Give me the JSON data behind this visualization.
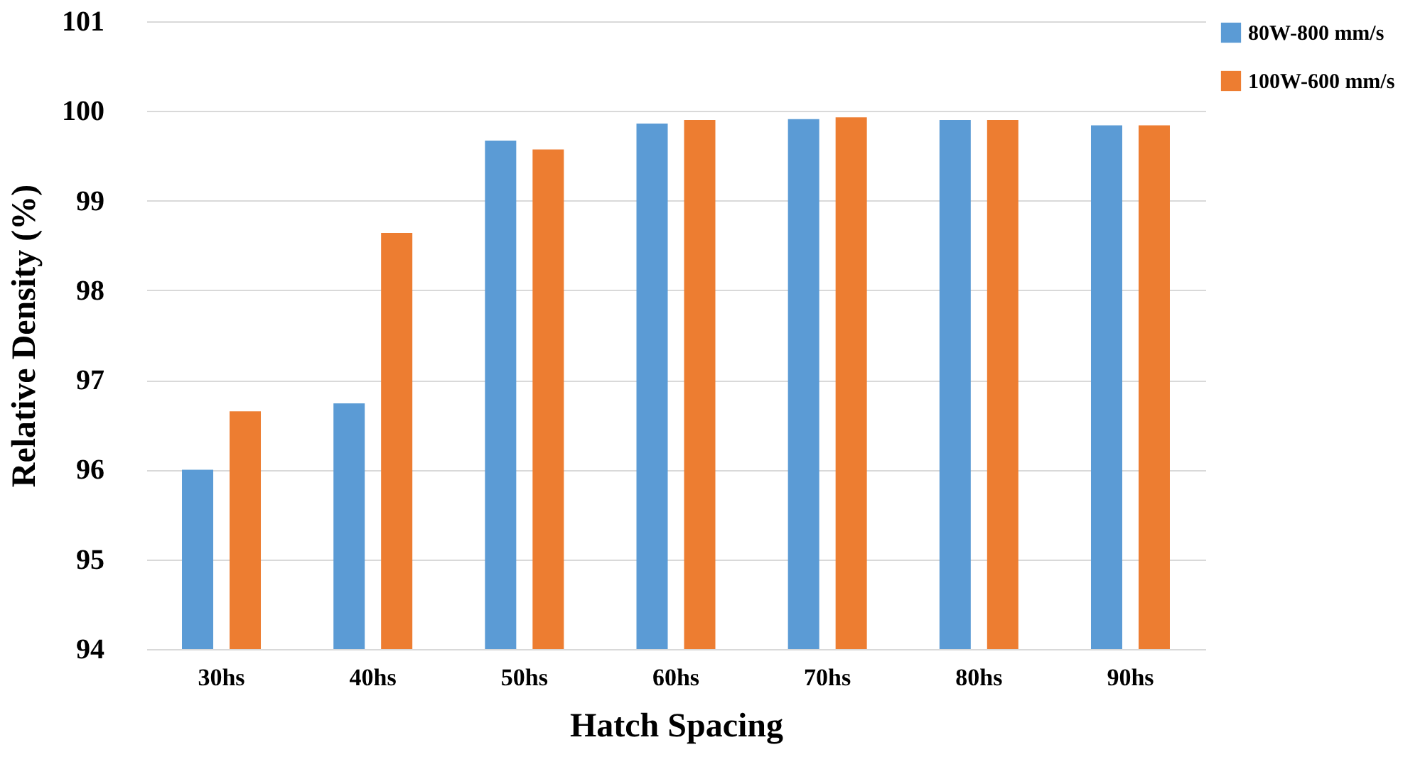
{
  "chart_data": {
    "type": "bar",
    "xlabel": "Hatch Spacing",
    "ylabel": "Relative Density (%)",
    "categories": [
      "30hs",
      "40hs",
      "50hs",
      "60hs",
      "70hs",
      "80hs",
      "90hs"
    ],
    "series": [
      {
        "name": "80W-800 mm/s",
        "color": "#5b9bd5",
        "values": [
          96.0,
          96.74,
          99.67,
          99.86,
          99.91,
          99.9,
          99.84
        ]
      },
      {
        "name": "100W-600 mm/s",
        "color": "#ed7d31",
        "values": [
          96.65,
          98.64,
          99.57,
          99.9,
          99.93,
          99.9,
          99.84
        ]
      }
    ],
    "ylim": [
      94,
      101
    ],
    "yticks": [
      94,
      95,
      96,
      97,
      98,
      99,
      100,
      101
    ],
    "grid": "y",
    "legend": "right"
  }
}
